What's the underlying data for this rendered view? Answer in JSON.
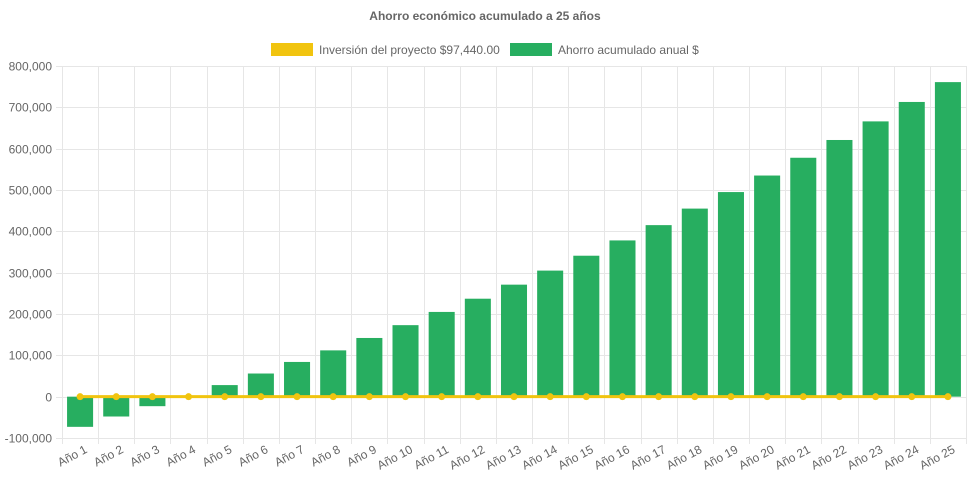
{
  "chart_data": {
    "type": "bar",
    "title": "Ahorro económico acumulado a 25 años",
    "xlabel": "",
    "ylabel": "",
    "ylim": [
      -100000,
      800000
    ],
    "yticks": [
      "800,000",
      "700,000",
      "600,000",
      "500,000",
      "400,000",
      "300,000",
      "200,000",
      "100,000",
      "0",
      "-100,000"
    ],
    "ytick_values": [
      800000,
      700000,
      600000,
      500000,
      400000,
      300000,
      200000,
      100000,
      0,
      -100000
    ],
    "grid": true,
    "legend_position": "top",
    "categories": [
      "Año 1",
      "Año 2",
      "Año 3",
      "Año 4",
      "Año 5",
      "Año 6",
      "Año 7",
      "Año 8",
      "Año 9",
      "Año 10",
      "Año 11",
      "Año 12",
      "Año 13",
      "Año 14",
      "Año 15",
      "Año 16",
      "Año 17",
      "Año 18",
      "Año 19",
      "Año 20",
      "Año 21",
      "Año 22",
      "Año 23",
      "Año 24",
      "Año 25"
    ],
    "series": [
      {
        "name": "Inversión del proyecto $97,440.00",
        "type": "line",
        "color": "#f1c40f",
        "values": [
          0,
          0,
          0,
          0,
          0,
          0,
          0,
          0,
          0,
          0,
          0,
          0,
          0,
          0,
          0,
          0,
          0,
          0,
          0,
          0,
          0,
          0,
          0,
          0,
          0
        ]
      },
      {
        "name": "Ahorro acumulado anual $",
        "type": "bar",
        "color": "#27ae60",
        "values": [
          -73000,
          -48000,
          -23000,
          0,
          28000,
          56000,
          84000,
          112000,
          142000,
          173000,
          205000,
          237000,
          271000,
          305000,
          341000,
          378000,
          415000,
          455000,
          495000,
          535000,
          578000,
          621000,
          666000,
          713000,
          761000
        ]
      }
    ]
  }
}
